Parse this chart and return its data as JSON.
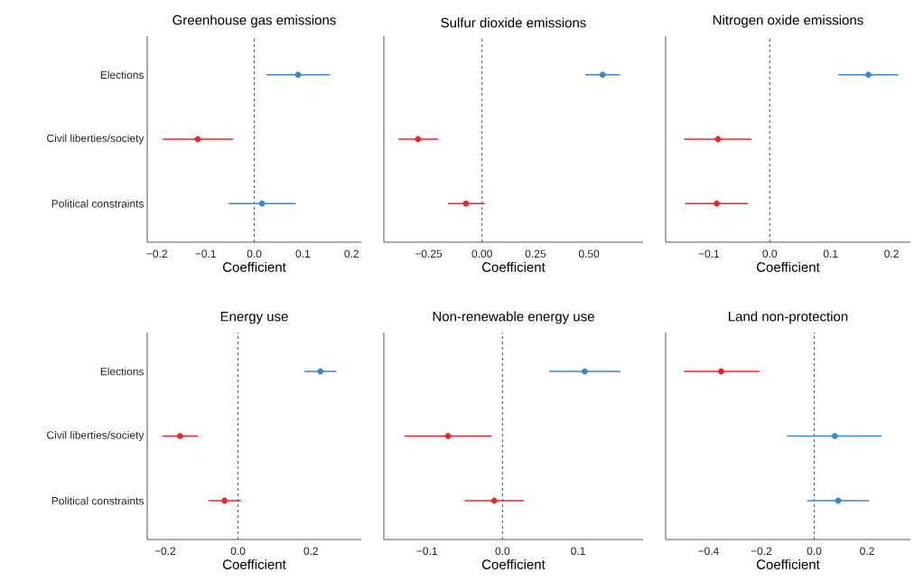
{
  "chart_data": [
    {
      "type": "scatter",
      "orientation": "horizontal",
      "title": "Greenhouse gas emissions",
      "xlabel": "Coefficient",
      "categories": [
        "Elections",
        "Civil liberties/society",
        "Political constraints"
      ],
      "values": [
        0.09,
        -0.116,
        0.016
      ],
      "errors": [
        [
          0.025,
          0.155
        ],
        [
          -0.188,
          -0.043
        ],
        [
          -0.053,
          0.085
        ]
      ],
      "colors": [
        "#3a87c8",
        "#e8262a",
        "#3a87c8"
      ],
      "xlim": [
        -0.22,
        0.22
      ],
      "xticks": [
        {
          "value": -0.2,
          "label": "−0.2"
        },
        {
          "value": -0.1,
          "label": "−0.1"
        },
        {
          "value": 0,
          "label": "0.0"
        },
        {
          "value": 0.1,
          "label": "0.1"
        },
        {
          "value": 0.2,
          "label": "0.2"
        }
      ],
      "ref_lines": [
        {
          "axis": "x",
          "value": 0,
          "line_style": "dashed"
        }
      ],
      "marker": "circle"
    },
    {
      "type": "scatter",
      "orientation": "horizontal",
      "title": "Sulfur dioxide emissions",
      "xlabel": "Coefficient",
      "categories": [
        null,
        null,
        null
      ],
      "values": [
        0.564,
        -0.299,
        -0.075
      ],
      "errors": [
        [
          0.483,
          0.645
        ],
        [
          -0.391,
          -0.206
        ],
        [
          -0.16,
          0.013
        ]
      ],
      "colors": [
        "#3a87c8",
        "#e8262a",
        "#e8262a"
      ],
      "xlim": [
        -0.459,
        0.753
      ],
      "xticks": [
        {
          "value": -0.25,
          "label": "−0.25"
        },
        {
          "value": 0,
          "label": "0.00"
        },
        {
          "value": 0.25,
          "label": "0.25"
        },
        {
          "value": 0.5,
          "label": "0.50"
        }
      ],
      "ref_lines": [
        {
          "axis": "x",
          "value": 0,
          "line_style": "dashed"
        }
      ],
      "marker": "circle",
      "tick_labels": "x"
    },
    {
      "type": "scatter",
      "orientation": "horizontal",
      "title": "Nitrogen oxide emissions",
      "xlabel": "Coefficient",
      "categories": [
        null,
        null,
        null
      ],
      "values": [
        0.162,
        -0.085,
        -0.087
      ],
      "errors": [
        [
          0.113,
          0.211
        ],
        [
          -0.141,
          -0.03
        ],
        [
          -0.139,
          -0.036
        ]
      ],
      "colors": [
        "#3a87c8",
        "#e8262a",
        "#e8262a"
      ],
      "xlim": [
        -0.171,
        0.231
      ],
      "xticks": [
        {
          "value": -0.1,
          "label": "−0.1"
        },
        {
          "value": 0,
          "label": "0.0"
        },
        {
          "value": 0.1,
          "label": "0.1"
        },
        {
          "value": 0.2,
          "label": "0.2"
        }
      ],
      "ref_lines": [
        {
          "axis": "x",
          "value": 0,
          "line_style": "dashed"
        }
      ],
      "marker": "circle",
      "tick_labels": "x"
    },
    {
      "type": "scatter",
      "orientation": "horizontal",
      "title": "Energy use",
      "xlabel": "Coefficient",
      "categories": [
        "Elections",
        "Civil liberties/society",
        "Political constraints"
      ],
      "values": [
        0.226,
        -0.159,
        -0.037
      ],
      "errors": [
        [
          0.182,
          0.27
        ],
        [
          -0.207,
          -0.11
        ],
        [
          -0.081,
          0.008
        ]
      ],
      "colors": [
        "#3a87c8",
        "#e8262a",
        "#e8262a"
      ],
      "xlim": [
        -0.249,
        0.338
      ],
      "xticks": [
        {
          "value": -0.2,
          "label": "−0.2"
        },
        {
          "value": 0,
          "label": "0.0"
        },
        {
          "value": 0.2,
          "label": "0.2"
        }
      ],
      "ref_lines": [
        {
          "axis": "x",
          "value": 0,
          "line_style": "dashed"
        }
      ],
      "marker": "circle"
    },
    {
      "type": "scatter",
      "orientation": "horizontal",
      "title": "Non-renewable energy use",
      "xlabel": "Coefficient",
      "categories": [
        null,
        null,
        null
      ],
      "values": [
        0.109,
        -0.072,
        -0.011
      ],
      "errors": [
        [
          0.062,
          0.156
        ],
        [
          -0.13,
          -0.014
        ],
        [
          -0.05,
          0.028
        ]
      ],
      "colors": [
        "#3a87c8",
        "#e8262a",
        "#e8262a"
      ],
      "xlim": [
        -0.157,
        0.186
      ],
      "xticks": [
        {
          "value": -0.1,
          "label": "−0.1"
        },
        {
          "value": 0,
          "label": "0.0"
        },
        {
          "value": 0.1,
          "label": "0.1"
        }
      ],
      "ref_lines": [
        {
          "axis": "x",
          "value": 0,
          "line_style": "dashed"
        }
      ],
      "marker": "circle",
      "tick_labels": "x"
    },
    {
      "type": "scatter",
      "orientation": "horizontal",
      "title": "Land non-protection",
      "xlabel": "Coefficient",
      "categories": [
        null,
        null,
        null
      ],
      "values": [
        -0.352,
        0.078,
        0.091
      ],
      "errors": [
        [
          -0.493,
          -0.207
        ],
        [
          -0.103,
          0.256
        ],
        [
          -0.027,
          0.208
        ]
      ],
      "colors": [
        "#e8262a",
        "#3a87c8",
        "#3a87c8"
      ],
      "xlim": [
        -0.562,
        0.364
      ],
      "xticks": [
        {
          "value": -0.4,
          "label": "−0.4"
        },
        {
          "value": -0.2,
          "label": "−0.2"
        },
        {
          "value": 0,
          "label": "0.0"
        },
        {
          "value": 0.2,
          "label": "0.2"
        }
      ],
      "ref_lines": [
        {
          "axis": "x",
          "value": 0,
          "line_style": "dashed"
        }
      ],
      "marker": "circle",
      "tick_labels": "x"
    }
  ]
}
